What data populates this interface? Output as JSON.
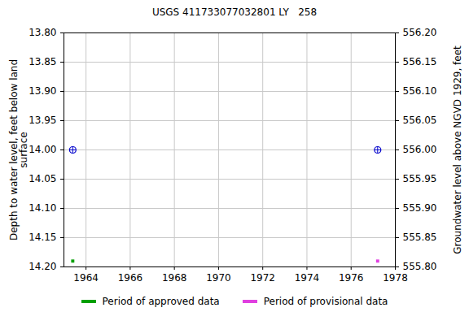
{
  "chart_data": {
    "type": "scatter",
    "title": "USGS 411733077032801 LY   258",
    "ylabel": "Depth to water level, feet below land\nsurface",
    "y2label": "Groundwater level above NGVD 1929, feet",
    "x": [
      1963.4,
      1977.2
    ],
    "series": [
      {
        "color": "#0000cc",
        "marker": "circle",
        "values": [
          14.0,
          14.0
        ]
      },
      {
        "name": "Period of approved data",
        "color": "#00a000",
        "marker": "square",
        "values": [
          14.19,
          null
        ]
      },
      {
        "name": "Period of provisional data",
        "color": "#e040e0",
        "marker": "square",
        "values": [
          null,
          14.19
        ]
      }
    ],
    "xlim": [
      1963,
      1978
    ],
    "xticks": [
      1964,
      1966,
      1968,
      1970,
      1972,
      1974,
      1976,
      1978
    ],
    "ylim": [
      14.2,
      13.8
    ],
    "yticks": [
      {
        "value": 13.8,
        "label": "13.80"
      },
      {
        "value": 13.85,
        "label": "13.85"
      },
      {
        "value": 13.9,
        "label": "13.90"
      },
      {
        "value": 13.95,
        "label": "13.95"
      },
      {
        "value": 14.0,
        "label": "14.00"
      },
      {
        "value": 14.05,
        "label": "14.05"
      },
      {
        "value": 14.1,
        "label": "14.10"
      },
      {
        "value": 14.15,
        "label": "14.15"
      },
      {
        "value": 14.2,
        "label": "14.20"
      }
    ],
    "y2lim": [
      555.8,
      556.2
    ],
    "y2ticks": [
      {
        "value": 556.2,
        "label": "556.20"
      },
      {
        "value": 556.15,
        "label": "556.15"
      },
      {
        "value": 556.1,
        "label": "556.10"
      },
      {
        "value": 556.05,
        "label": "556.05"
      },
      {
        "value": 556.0,
        "label": "556.00"
      },
      {
        "value": 555.95,
        "label": "555.95"
      },
      {
        "value": 555.9,
        "label": "555.90"
      },
      {
        "value": 555.85,
        "label": "555.85"
      },
      {
        "value": 555.8,
        "label": "555.80"
      }
    ],
    "grid": true,
    "legend": "bottom"
  }
}
